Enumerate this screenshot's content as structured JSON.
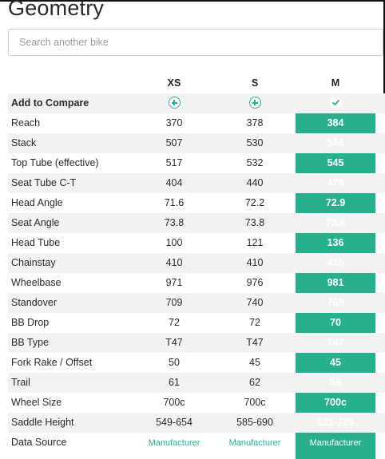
{
  "title": "Geometry",
  "search": {
    "placeholder": "Search another bike"
  },
  "sizes": [
    "XS",
    "S",
    "M"
  ],
  "selected_size": "M",
  "compare_row_label": "Add to Compare",
  "accent_color": "#26b08e",
  "rows": [
    {
      "label": "Reach",
      "values": [
        "370",
        "378",
        "384"
      ]
    },
    {
      "label": "Stack",
      "values": [
        "507",
        "530",
        "546"
      ]
    },
    {
      "label": "Top Tube (effective)",
      "values": [
        "517",
        "532",
        "545"
      ]
    },
    {
      "label": "Seat Tube C-T",
      "values": [
        "404",
        "440",
        "476"
      ]
    },
    {
      "label": "Head Angle",
      "values": [
        "71.6",
        "72.2",
        "72.9"
      ]
    },
    {
      "label": "Seat Angle",
      "values": [
        "73.8",
        "73.8",
        "73.6"
      ]
    },
    {
      "label": "Head Tube",
      "values": [
        "100",
        "121",
        "136"
      ]
    },
    {
      "label": "Chainstay",
      "values": [
        "410",
        "410",
        "410"
      ]
    },
    {
      "label": "Wheelbase",
      "values": [
        "971",
        "976",
        "981"
      ]
    },
    {
      "label": "Standover",
      "values": [
        "709",
        "740",
        "768"
      ]
    },
    {
      "label": "BB Drop",
      "values": [
        "72",
        "72",
        "70"
      ]
    },
    {
      "label": "BB Type",
      "values": [
        "T47",
        "T47",
        "T47"
      ]
    },
    {
      "label": "Fork Rake / Offset",
      "values": [
        "50",
        "45",
        "45"
      ]
    },
    {
      "label": "Trail",
      "values": [
        "61",
        "62",
        "58"
      ]
    },
    {
      "label": "Wheel Size",
      "values": [
        "700c",
        "700c",
        "700c"
      ]
    },
    {
      "label": "Saddle Height",
      "values": [
        "549-654",
        "585-690",
        "621-726"
      ]
    },
    {
      "label": "Data Source",
      "values": [
        "Manufacturer",
        "Manufacturer",
        "Manufacturer"
      ]
    }
  ]
}
